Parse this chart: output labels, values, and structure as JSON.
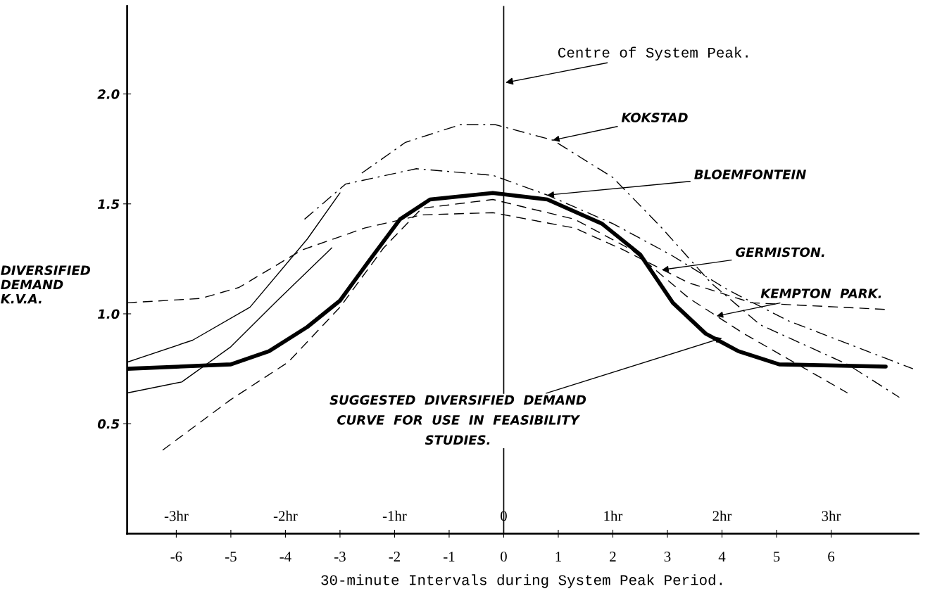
{
  "chart_data": {
    "type": "line",
    "xlabel": "30-minute Intervals during System Peak Period.",
    "ylabel": "DIVERSIFIED\nDEMAND\nK.V.A.",
    "xlim": [
      -6.9,
      7.6
    ],
    "ylim": [
      0,
      2.4
    ],
    "xticks": [
      -6,
      -5,
      -4,
      -3,
      -2,
      -1,
      0,
      1,
      2,
      3,
      4,
      5,
      6
    ],
    "yticks": [
      0.5,
      {
        "value": 1,
        "label": "1.0"
      },
      1.5,
      {
        "value": 2,
        "label": "2.0"
      }
    ],
    "x2lim": [
      -3.45,
      3.8
    ],
    "x2ticks": [
      {
        "value": -3,
        "label": "-3hr"
      },
      {
        "value": -2,
        "label": "-2hr"
      },
      {
        "value": -1,
        "label": "-1hr"
      },
      0,
      {
        "value": 1,
        "label": "1hr"
      },
      {
        "value": 2,
        "label": "2hr"
      },
      {
        "value": 3,
        "label": "3hr"
      }
    ],
    "grid": false,
    "legend": false,
    "marker": "none",
    "series": [
      {
        "color": "#000000",
        "line_style": "solid",
        "x": [
          -6.9,
          -5.0,
          -4.3,
          -3.6,
          -3.0,
          -2.5,
          -1.9,
          -1.35,
          -0.2,
          0.8,
          1.8,
          2.5,
          3.1,
          3.7,
          4.3,
          5.05,
          7.0
        ],
        "values": [
          0.75,
          0.77,
          0.83,
          0.94,
          1.06,
          1.23,
          1.43,
          1.52,
          1.55,
          1.52,
          1.41,
          1.27,
          1.05,
          0.91,
          0.83,
          0.77,
          0.76
        ]
      },
      {
        "color": "#000000",
        "line_style": "dashdot",
        "x": [
          -2.6,
          -1.8,
          -0.8,
          -0.15,
          0.9,
          2.0,
          2.9,
          3.8,
          4.7,
          6.3,
          7.25
        ],
        "values": [
          1.64,
          1.78,
          1.86,
          1.86,
          1.79,
          1.62,
          1.39,
          1.14,
          0.95,
          0.77,
          0.62
        ]
      },
      {
        "color": "#000000",
        "line_style": "dashdot",
        "x": [
          -3.65,
          -2.9,
          -1.6,
          -0.2,
          0.8,
          2.0,
          3.05,
          4.1,
          5.2,
          7.5
        ],
        "values": [
          1.43,
          1.59,
          1.66,
          1.63,
          1.54,
          1.41,
          1.27,
          1.11,
          0.97,
          0.75
        ]
      },
      {
        "color": "#000000",
        "line_style": "dashed",
        "x": [
          -6.9,
          -5.55,
          -4.85,
          -3.7,
          -2.55,
          -1.5,
          -0.2,
          1.3,
          2.2,
          3.4,
          4.55,
          7.0
        ],
        "values": [
          1.05,
          1.07,
          1.12,
          1.29,
          1.39,
          1.45,
          1.46,
          1.39,
          1.29,
          1.14,
          1.05,
          1.02
        ]
      },
      {
        "color": "#000000",
        "line_style": "dashed",
        "x": [
          -6.25,
          -5.0,
          -3.95,
          -3.0,
          -2.2,
          -1.5,
          -0.2,
          1.3,
          2.35,
          3.4,
          4.4,
          6.3
        ],
        "values": [
          0.38,
          0.61,
          0.78,
          1.03,
          1.3,
          1.48,
          1.52,
          1.43,
          1.29,
          1.07,
          0.91,
          0.64
        ]
      },
      {
        "color": "#000000",
        "line_style": "solid",
        "x": [
          -6.9,
          -5.7,
          -4.65,
          -3.6,
          -3.0
        ],
        "values": [
          0.78,
          0.88,
          1.03,
          1.34,
          1.55
        ]
      },
      {
        "color": "#000000",
        "line_style": "solid",
        "x": [
          -6.9,
          -5.9,
          -5.0,
          -4.15,
          -3.15
        ],
        "values": [
          0.64,
          0.69,
          0.85,
          1.06,
          1.3
        ]
      }
    ],
    "ref_lines": [
      {
        "axis": "x",
        "value": 0,
        "label": "Centre of System Peak.",
        "color": "#000000",
        "line_style": "solid"
      }
    ],
    "annotations": [
      {
        "text": "KOKSTAD",
        "x": 0.9,
        "y": 1.79
      },
      {
        "text": "BLOEMFONTEIN",
        "x": 0.8,
        "y": 1.54
      },
      {
        "text": "GERMISTON.",
        "x": 2.9,
        "y": 1.2
      },
      {
        "text": "KEMPTON  PARK.",
        "x": 3.9,
        "y": 0.99
      },
      {
        "text": "SUGGESTED  DIVERSIFIED  DEMAND\nCURVE  FOR  USE  IN  FEASIBILITY\nSTUDIES.",
        "x": 4.0,
        "y": 0.89
      }
    ]
  }
}
